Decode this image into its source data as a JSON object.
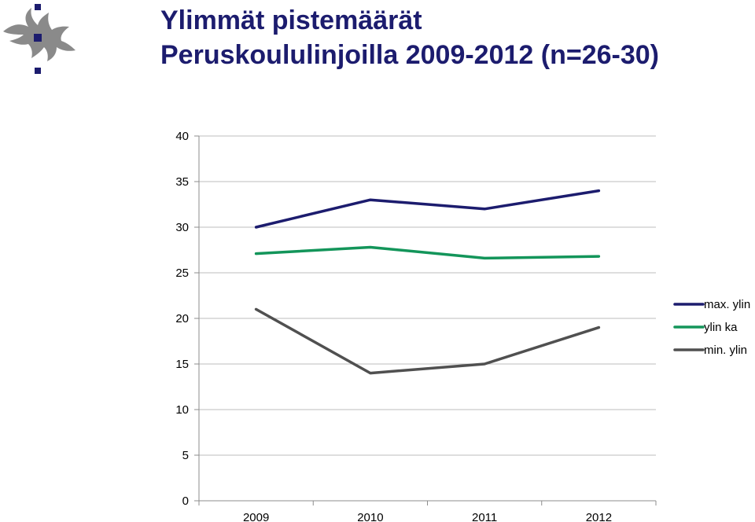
{
  "header": {
    "title_line1": "Ylimmät pistemäärät",
    "title_line2": "Peruskoululinjoilla 2009-2012 (n=26-30)"
  },
  "logo": {
    "icon": "university-flame-logo-icon"
  },
  "chart_data": {
    "type": "line",
    "title": "Ylimmät pistemäärät Peruskoululinjoilla 2009-2012 (n=26-30)",
    "categories": [
      "2009",
      "2010",
      "2011",
      "2012"
    ],
    "ylim": [
      0,
      40
    ],
    "yticks": [
      0,
      5,
      10,
      15,
      20,
      25,
      30,
      35,
      40
    ],
    "grid": true,
    "legend_position": "right",
    "series": [
      {
        "name": "max. ylin",
        "values": [
          30,
          33,
          32,
          34
        ],
        "color": "#1c1c6e"
      },
      {
        "name": "ylin ka",
        "values": [
          27.1,
          27.8,
          26.6,
          26.8
        ],
        "color": "#13955a"
      },
      {
        "name": "min. ylin",
        "values": [
          21,
          14,
          15,
          19
        ],
        "color": "#505050"
      }
    ]
  }
}
